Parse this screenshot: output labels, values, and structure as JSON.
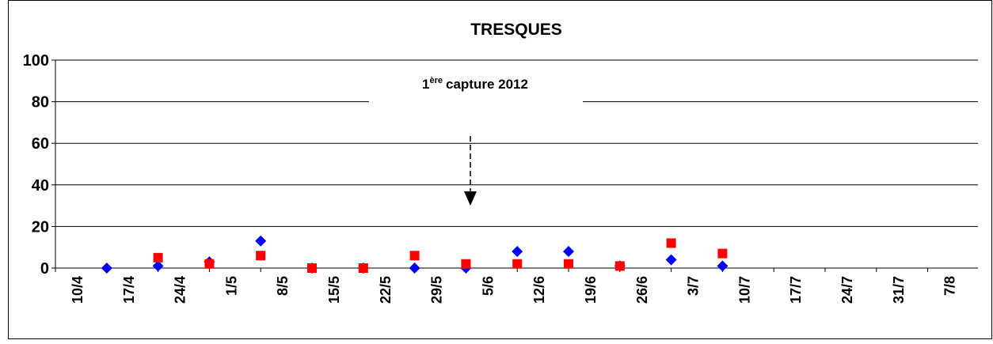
{
  "chart_data": {
    "type": "scatter",
    "title": "TRESQUES",
    "annotation": {
      "base": "1",
      "sup": "ère",
      "rest": "capture 2012"
    },
    "categories": [
      "10/4",
      "17/4",
      "24/4",
      "1/5",
      "8/5",
      "15/5",
      "22/5",
      "29/5",
      "5/6",
      "12/6",
      "19/6",
      "26/6",
      "3/7",
      "10/7",
      "17/7",
      "24/7",
      "31/7",
      "7/8"
    ],
    "series": [
      {
        "color": "#0000ff",
        "marker": "diamond",
        "values": [
          null,
          0,
          1,
          3,
          13,
          0,
          0,
          0,
          0,
          8,
          8,
          1,
          4,
          1,
          null,
          null,
          null,
          null
        ]
      },
      {
        "color": "#ff0000",
        "marker": "square",
        "values": [
          null,
          null,
          5,
          2,
          6,
          0,
          0,
          6,
          2,
          2,
          2,
          1,
          12,
          7,
          null,
          null,
          null,
          null
        ]
      }
    ],
    "ylim": [
      0,
      100
    ],
    "yticks": [
      0,
      20,
      40,
      60,
      80,
      100
    ],
    "grid": true
  }
}
